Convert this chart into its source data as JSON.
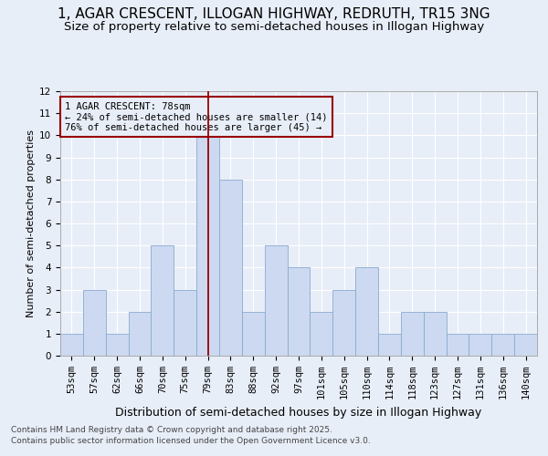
{
  "title": "1, AGAR CRESCENT, ILLOGAN HIGHWAY, REDRUTH, TR15 3NG",
  "subtitle": "Size of property relative to semi-detached houses in Illogan Highway",
  "xlabel": "Distribution of semi-detached houses by size in Illogan Highway",
  "ylabel": "Number of semi-detached properties",
  "categories": [
    "53sqm",
    "57sqm",
    "62sqm",
    "66sqm",
    "70sqm",
    "75sqm",
    "79sqm",
    "83sqm",
    "88sqm",
    "92sqm",
    "97sqm",
    "101sqm",
    "105sqm",
    "110sqm",
    "114sqm",
    "118sqm",
    "123sqm",
    "127sqm",
    "131sqm",
    "136sqm",
    "140sqm"
  ],
  "values": [
    1,
    3,
    1,
    2,
    5,
    3,
    10,
    8,
    2,
    5,
    4,
    2,
    3,
    4,
    1,
    2,
    2,
    1,
    1,
    1,
    1
  ],
  "bar_color": "#ccd9f0",
  "bar_edge_color": "#8aaad0",
  "highlight_index": 6,
  "highlight_line_color": "#990000",
  "ylim": [
    0,
    12
  ],
  "yticks": [
    0,
    1,
    2,
    3,
    4,
    5,
    6,
    7,
    8,
    9,
    10,
    11,
    12
  ],
  "annotation_title": "1 AGAR CRESCENT: 78sqm",
  "annotation_line1": "← 24% of semi-detached houses are smaller (14)",
  "annotation_line2": "76% of semi-detached houses are larger (45) →",
  "annotation_box_color": "#990000",
  "footer1": "Contains HM Land Registry data © Crown copyright and database right 2025.",
  "footer2": "Contains public sector information licensed under the Open Government Licence v3.0.",
  "bg_color": "#e8eef8",
  "grid_color": "#ffffff",
  "title_fontsize": 11,
  "subtitle_fontsize": 9.5,
  "xlabel_fontsize": 9,
  "ylabel_fontsize": 8,
  "tick_fontsize": 7.5,
  "annotation_fontsize": 7.5,
  "footer_fontsize": 6.5
}
